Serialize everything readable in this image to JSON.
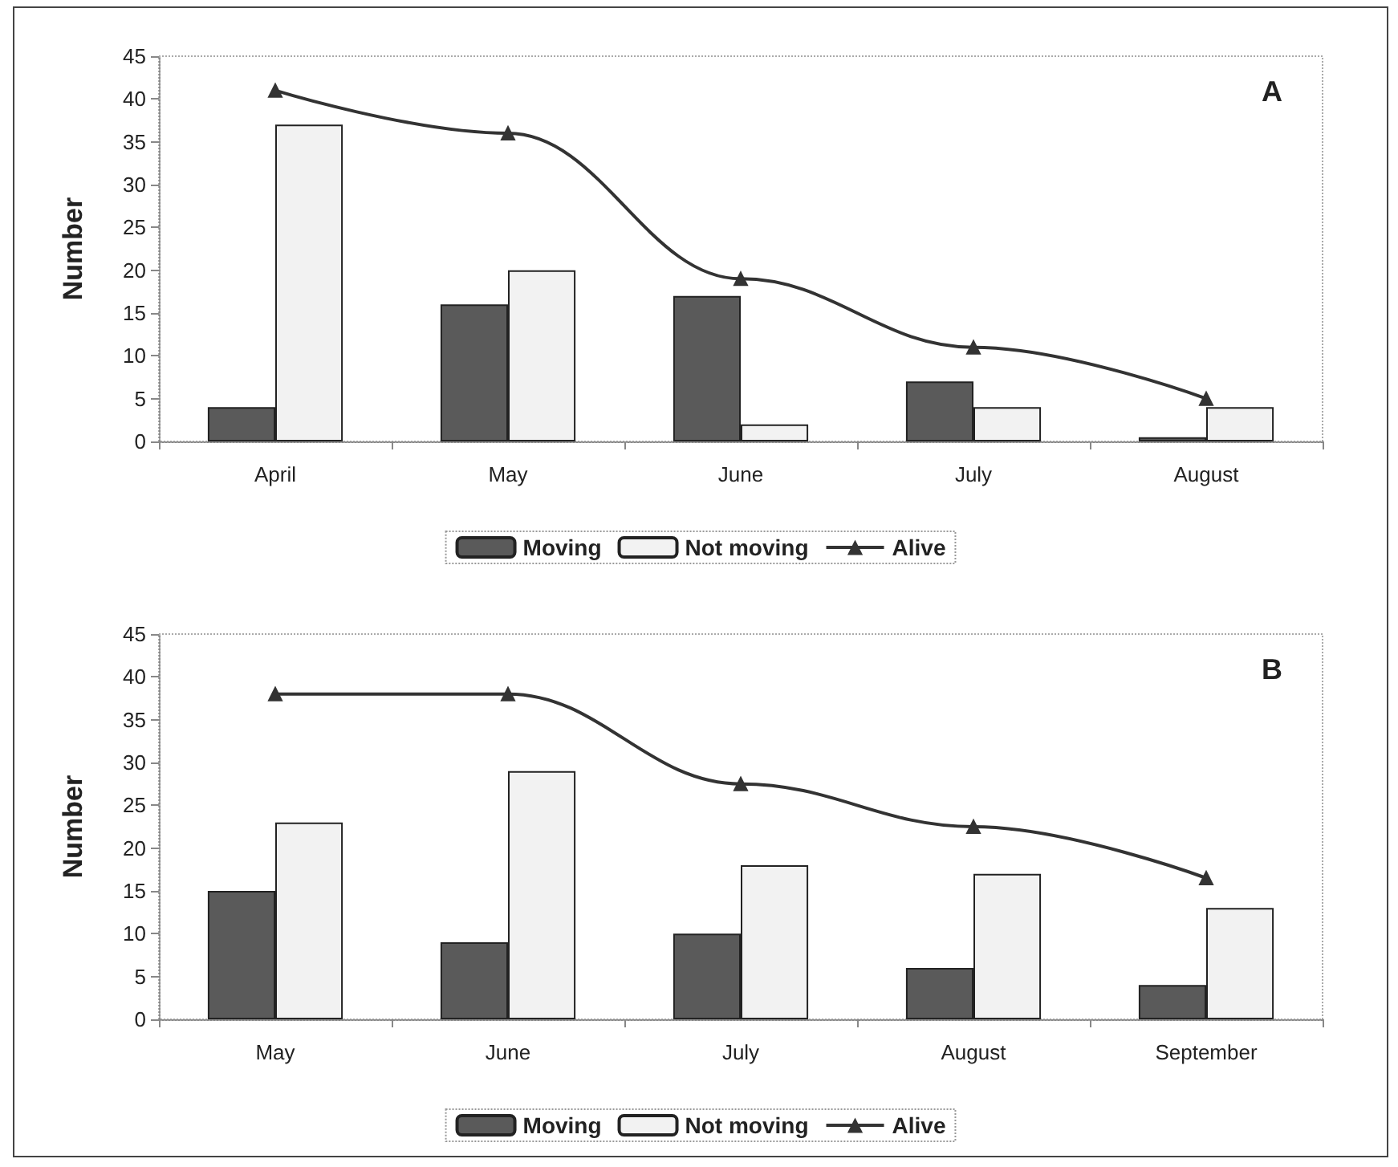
{
  "chart_data": [
    {
      "type": "bar",
      "title": "A",
      "ylabel": "Number",
      "categories": [
        "April",
        "May",
        "June",
        "July",
        "August"
      ],
      "series": [
        {
          "name": "Moving",
          "color": "#5a5a5a",
          "values": [
            4,
            16,
            17,
            7,
            0.5
          ]
        },
        {
          "name": "Not moving",
          "color": "#f2f2f2",
          "values": [
            37,
            20,
            2,
            4,
            4
          ]
        },
        {
          "name": "Alive",
          "type": "line",
          "color": "#333333",
          "values": [
            41,
            36,
            19,
            11,
            5
          ]
        }
      ],
      "ylim": [
        0,
        45
      ],
      "yticks": [
        0,
        5,
        10,
        15,
        20,
        25,
        30,
        35,
        40,
        45
      ],
      "grid": false,
      "legend": "bottom",
      "marker": "triangle",
      "line_style": "solid"
    },
    {
      "type": "bar",
      "title": "B",
      "ylabel": "Number",
      "categories": [
        "May",
        "June",
        "July",
        "August",
        "September"
      ],
      "series": [
        {
          "name": "Moving",
          "color": "#5a5a5a",
          "values": [
            15,
            9,
            10,
            6,
            4
          ]
        },
        {
          "name": "Not moving",
          "color": "#f2f2f2",
          "values": [
            23,
            29,
            18,
            17,
            13
          ]
        },
        {
          "name": "Alive",
          "type": "line",
          "color": "#333333",
          "values": [
            38,
            38,
            27.5,
            22.5,
            16.5
          ]
        }
      ],
      "ylim": [
        0,
        45
      ],
      "yticks": [
        0,
        5,
        10,
        15,
        20,
        25,
        30,
        35,
        40,
        45
      ],
      "grid": false,
      "legend": "bottom",
      "marker": "triangle",
      "line_style": "solid"
    }
  ]
}
